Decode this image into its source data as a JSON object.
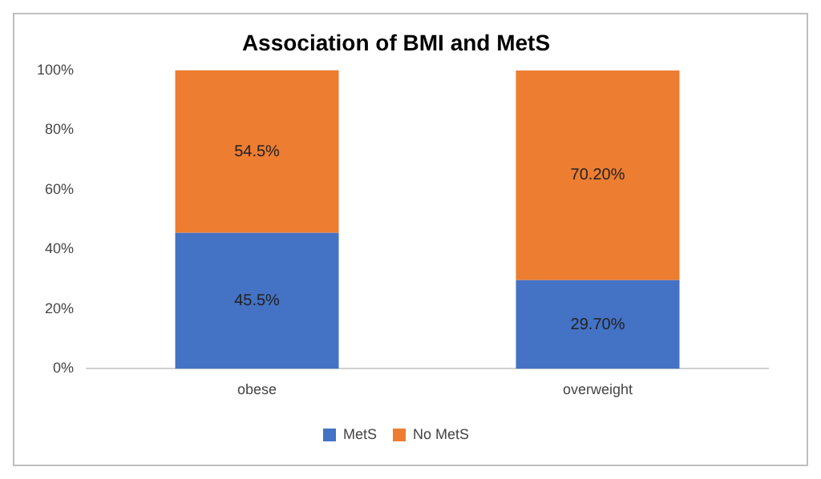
{
  "chart_data": {
    "type": "bar",
    "title": "Association of BMI and MetS",
    "categories": [
      "obese",
      "overweight"
    ],
    "stacked": true,
    "series": [
      {
        "name": "MetS",
        "color": "#4472c4",
        "values": [
          45.5,
          29.7
        ],
        "value_labels": [
          "45.5%",
          "29.70%"
        ]
      },
      {
        "name": "No MetS",
        "color": "#ed7d31",
        "values": [
          54.5,
          70.2
        ],
        "value_labels": [
          "54.5%",
          "70.20%"
        ]
      }
    ],
    "ylim": [
      0,
      100
    ],
    "yticks": [
      {
        "value": 0,
        "label": "0%"
      },
      {
        "value": 20,
        "label": "20%"
      },
      {
        "value": 40,
        "label": "40%"
      },
      {
        "value": 60,
        "label": "60%"
      },
      {
        "value": 80,
        "label": "80%"
      },
      {
        "value": 100,
        "label": "100%"
      }
    ],
    "grid": false,
    "legend": "bottom"
  }
}
